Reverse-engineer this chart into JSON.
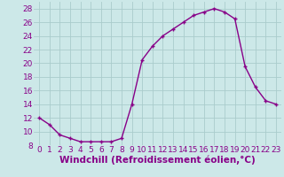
{
  "x": [
    0,
    1,
    2,
    3,
    4,
    5,
    6,
    7,
    8,
    9,
    10,
    11,
    12,
    13,
    14,
    15,
    16,
    17,
    18,
    19,
    20,
    21,
    22,
    23
  ],
  "y": [
    12,
    11,
    9.5,
    9,
    8.5,
    8.5,
    8.5,
    8.5,
    9,
    14,
    20.5,
    22.5,
    24,
    25,
    26,
    27,
    27.5,
    28,
    27.5,
    26.5,
    19.5,
    16.5,
    14.5,
    14
  ],
  "line_color": "#880088",
  "marker": "+",
  "bg_color": "#cce8e8",
  "grid_color": "#aacccc",
  "xlabel": "Windchill (Refroidissement éolien,°C)",
  "xlabel_color": "#880088",
  "tick_color": "#880088",
  "ylim": [
    8,
    29
  ],
  "xlim": [
    -0.5,
    23.5
  ],
  "yticks": [
    8,
    10,
    12,
    14,
    16,
    18,
    20,
    22,
    24,
    26,
    28
  ],
  "xticks": [
    0,
    1,
    2,
    3,
    4,
    5,
    6,
    7,
    8,
    9,
    10,
    11,
    12,
    13,
    14,
    15,
    16,
    17,
    18,
    19,
    20,
    21,
    22,
    23
  ],
  "tick_fontsize": 6.5,
  "xlabel_fontsize": 7.5,
  "marker_size": 3,
  "linewidth": 1.0
}
